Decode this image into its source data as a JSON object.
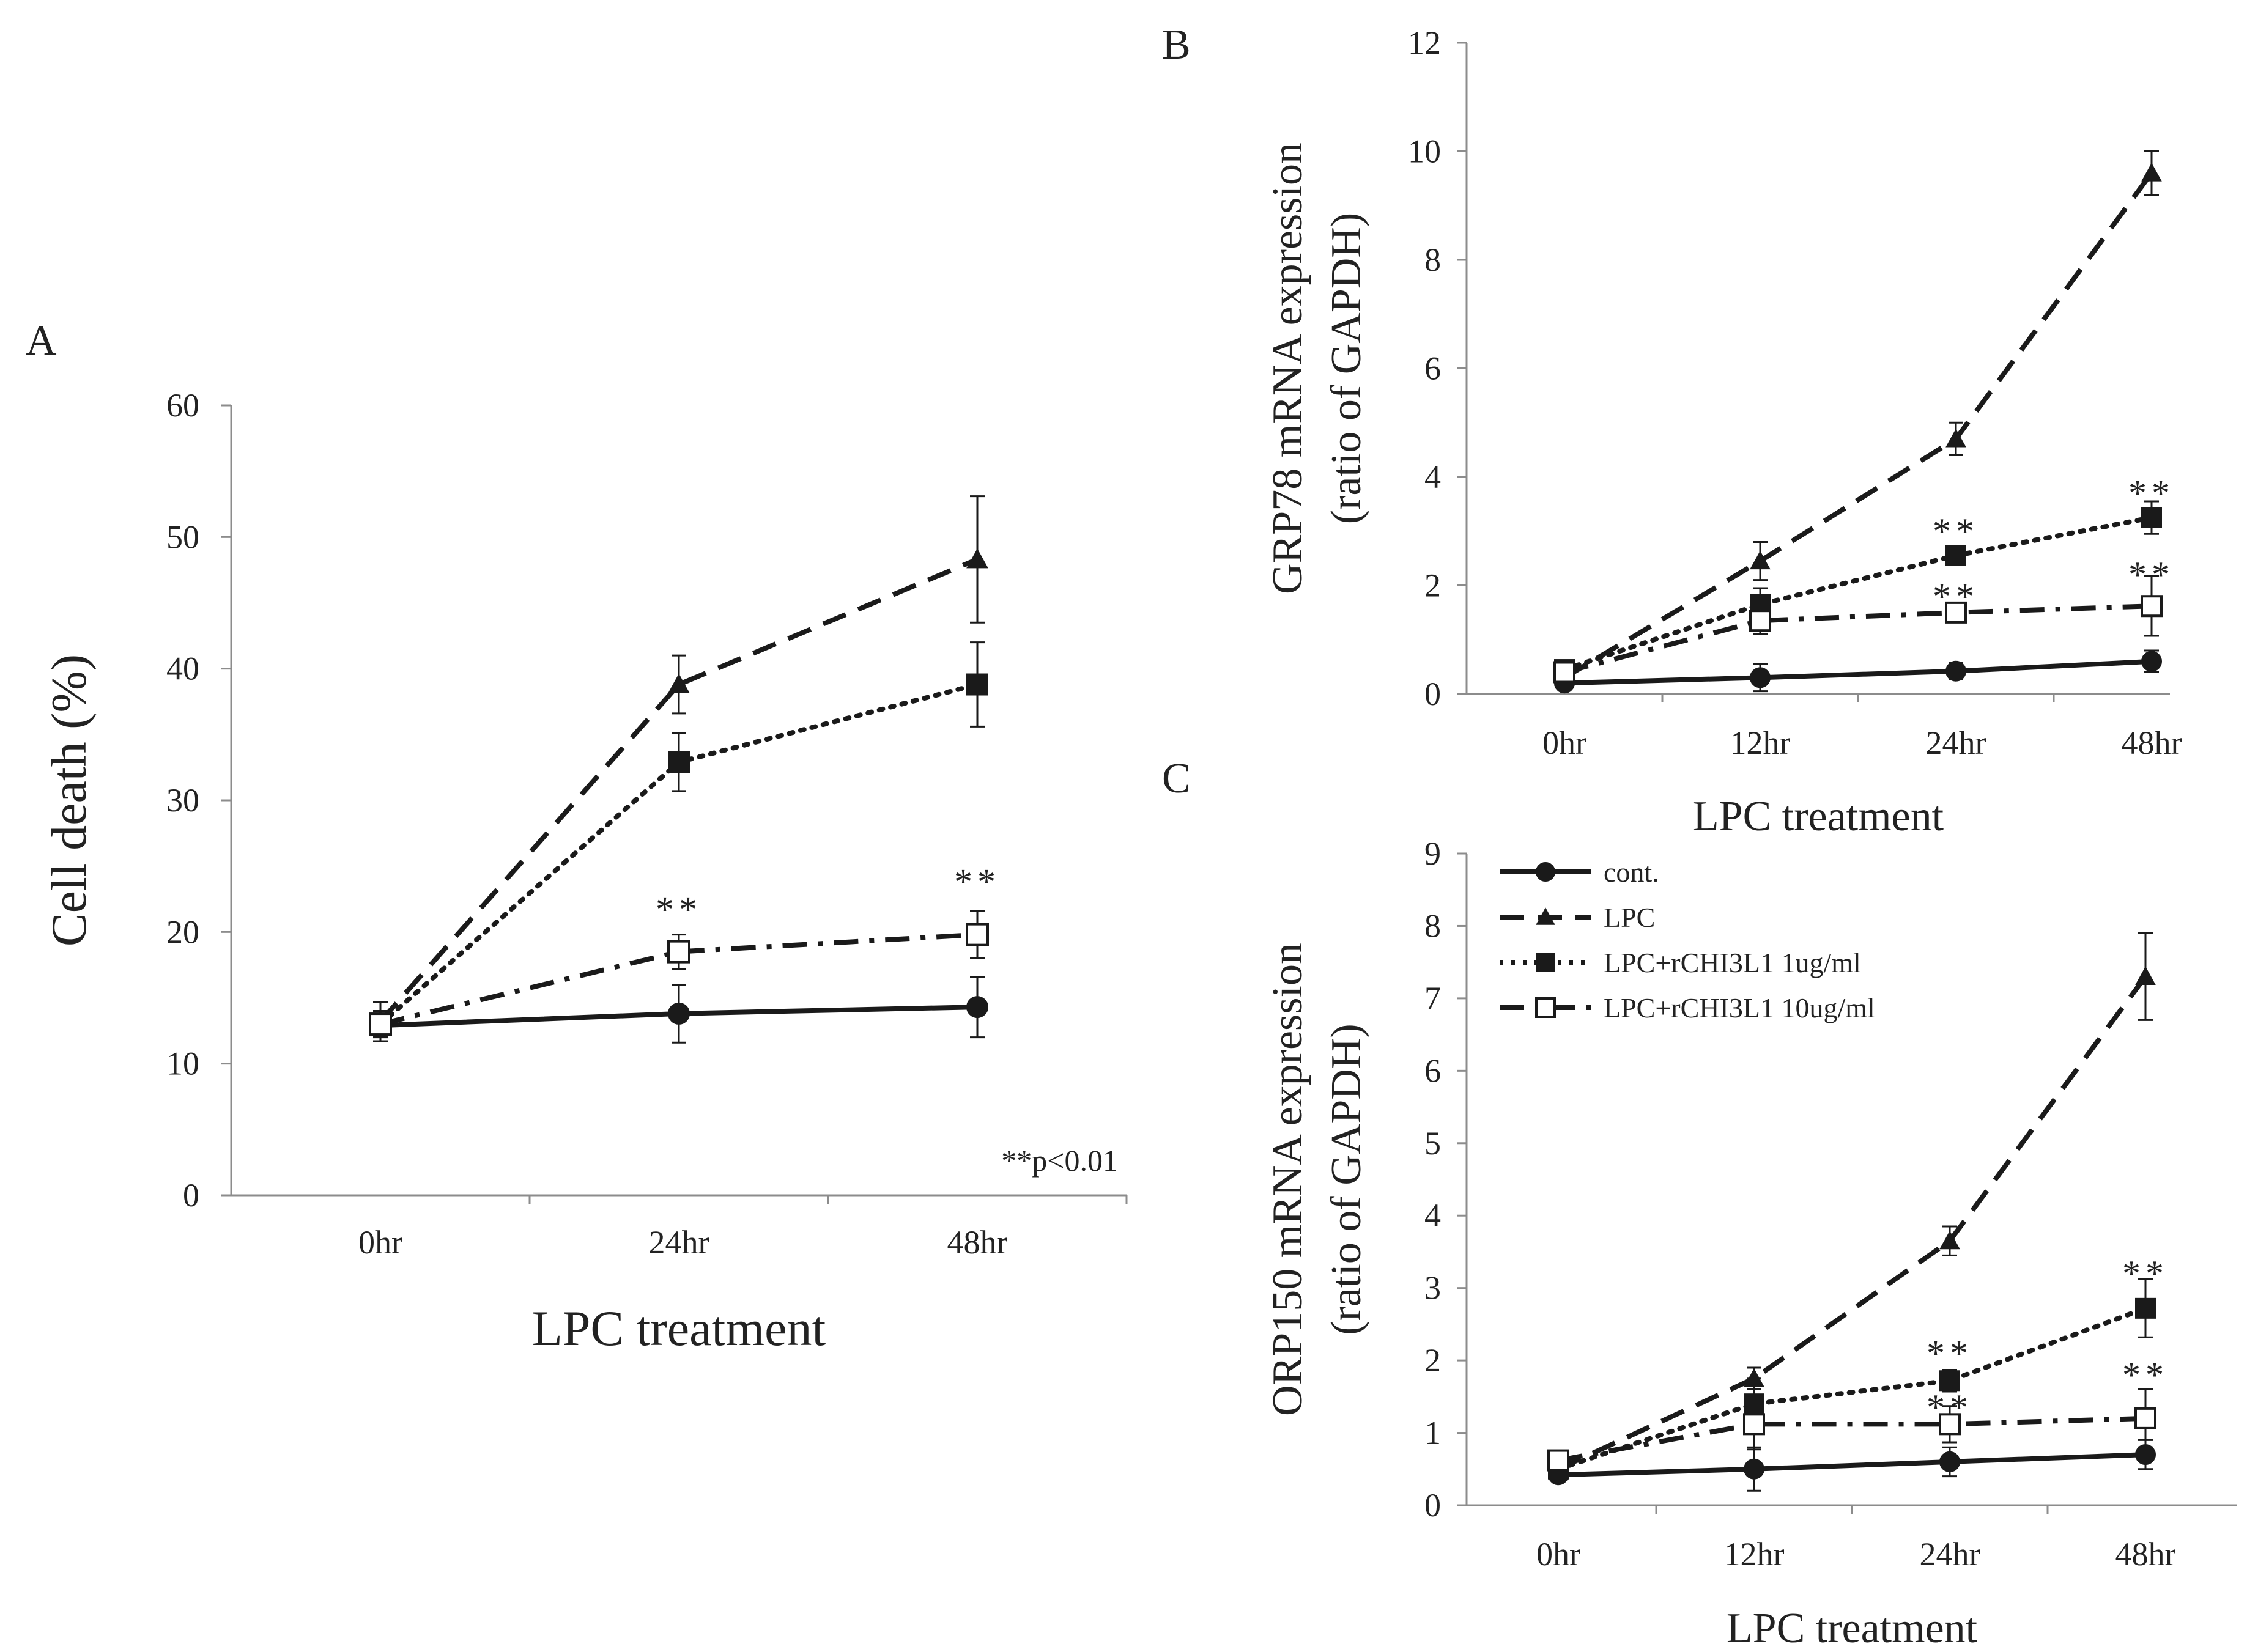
{
  "figure": {
    "legend": [
      {
        "name": "cont.",
        "line": "solid",
        "marker": "circle"
      },
      {
        "name": "LPC",
        "line": "dash",
        "marker": "triangle"
      },
      {
        "name": "LPC+rCHI3L1 1ug/ml",
        "line": "dot",
        "marker": "square-filled"
      },
      {
        "name": "LPC+rCHI3L1 10ug/ml",
        "line": "dashdot",
        "marker": "square-open"
      }
    ]
  },
  "chart_data": [
    {
      "id": "A",
      "panel_label": "A",
      "type": "line",
      "xlabel": "LPC treatment",
      "ylabel": "Cell death (%)",
      "categories": [
        "0hr",
        "24hr",
        "48hr"
      ],
      "ylim": [
        0,
        60
      ],
      "yticks": [
        "0",
        "10",
        "20",
        "30",
        "40",
        "50",
        "60"
      ],
      "series": [
        {
          "name": "cont.",
          "values": [
            12.9,
            13.8,
            14.3
          ],
          "errors": [
            0.8,
            2.2,
            2.3
          ]
        },
        {
          "name": "LPC",
          "values": [
            13.2,
            38.8,
            48.3
          ],
          "errors": [
            1.5,
            2.2,
            4.8
          ]
        },
        {
          "name": "LPC+rCHI3L1 1ug/ml",
          "values": [
            13.0,
            32.9,
            38.8
          ],
          "errors": [
            0.8,
            2.2,
            3.2
          ]
        },
        {
          "name": "LPC+rCHI3L1 10ug/ml",
          "values": [
            13.0,
            18.5,
            19.8
          ],
          "errors": [
            1.0,
            1.3,
            1.8
          ]
        }
      ],
      "annotations": [
        {
          "text": "**",
          "category": "24hr",
          "y": 21.7
        },
        {
          "text": "**",
          "category": "48hr",
          "y": 23.8
        }
      ],
      "note": "**p<0.01"
    },
    {
      "id": "B",
      "panel_label": "B",
      "type": "line",
      "xlabel": "LPC treatment",
      "ylabel": [
        "GRP78 mRNA expression",
        "(ratio of GAPDH)"
      ],
      "categories": [
        "0hr",
        "12hr",
        "24hr",
        "48hr"
      ],
      "ylim": [
        0,
        12
      ],
      "yticks": [
        "0",
        "2",
        "4",
        "6",
        "8",
        "10",
        "12"
      ],
      "series": [
        {
          "name": "cont.",
          "values": [
            0.2,
            0.3,
            0.42,
            0.6
          ],
          "errors": [
            0.1,
            0.25,
            0.15,
            0.2
          ]
        },
        {
          "name": "LPC",
          "values": [
            0.3,
            2.45,
            4.7,
            9.6
          ],
          "errors": [
            0.1,
            0.35,
            0.3,
            0.4
          ]
        },
        {
          "name": "LPC+rCHI3L1 1ug/ml",
          "values": [
            0.45,
            1.65,
            2.55,
            3.25
          ],
          "errors": [
            0.1,
            0.3,
            0.15,
            0.3
          ]
        },
        {
          "name": "LPC+rCHI3L1 10ug/ml",
          "values": [
            0.4,
            1.35,
            1.5,
            1.62
          ],
          "errors": [
            0.1,
            0.25,
            0.15,
            0.55
          ]
        }
      ],
      "annotations": [
        {
          "text": "**",
          "category": "24hr",
          "y": 3.0
        },
        {
          "text": "**",
          "category": "24hr",
          "y": 1.8
        },
        {
          "text": "**",
          "category": "48hr",
          "y": 3.7
        },
        {
          "text": "**",
          "category": "48hr",
          "y": 2.2
        }
      ]
    },
    {
      "id": "C",
      "panel_label": "C",
      "type": "line",
      "xlabel": "LPC treatment",
      "ylabel": [
        "ORP150 mRNA expression",
        "(ratio of GAPDH)"
      ],
      "categories": [
        "0hr",
        "12hr",
        "24hr",
        "48hr"
      ],
      "ylim": [
        0,
        9
      ],
      "yticks": [
        "0",
        "1",
        "2",
        "3",
        "4",
        "5",
        "6",
        "7",
        "8",
        "9"
      ],
      "series": [
        {
          "name": "cont.",
          "values": [
            0.42,
            0.5,
            0.6,
            0.7
          ],
          "errors": [
            0.05,
            0.3,
            0.2,
            0.2
          ]
        },
        {
          "name": "LPC",
          "values": [
            0.5,
            1.75,
            3.65,
            7.3
          ],
          "errors": [
            0.1,
            0.15,
            0.2,
            0.6
          ]
        },
        {
          "name": "LPC+rCHI3L1 1ug/ml",
          "values": [
            0.5,
            1.4,
            1.72,
            2.72
          ],
          "errors": [
            0.1,
            0.35,
            0.15,
            0.4
          ]
        },
        {
          "name": "LPC+rCHI3L1 10ug/ml",
          "values": [
            0.62,
            1.12,
            1.12,
            1.2
          ],
          "errors": [
            0.1,
            0.35,
            0.25,
            0.4
          ]
        }
      ],
      "annotations": [
        {
          "text": "**",
          "category": "24hr",
          "y": 2.1
        },
        {
          "text": "**",
          "category": "24hr",
          "y": 1.35
        },
        {
          "text": "**",
          "category": "48hr",
          "y": 3.2
        },
        {
          "text": "**",
          "category": "48hr",
          "y": 1.8
        }
      ]
    }
  ]
}
